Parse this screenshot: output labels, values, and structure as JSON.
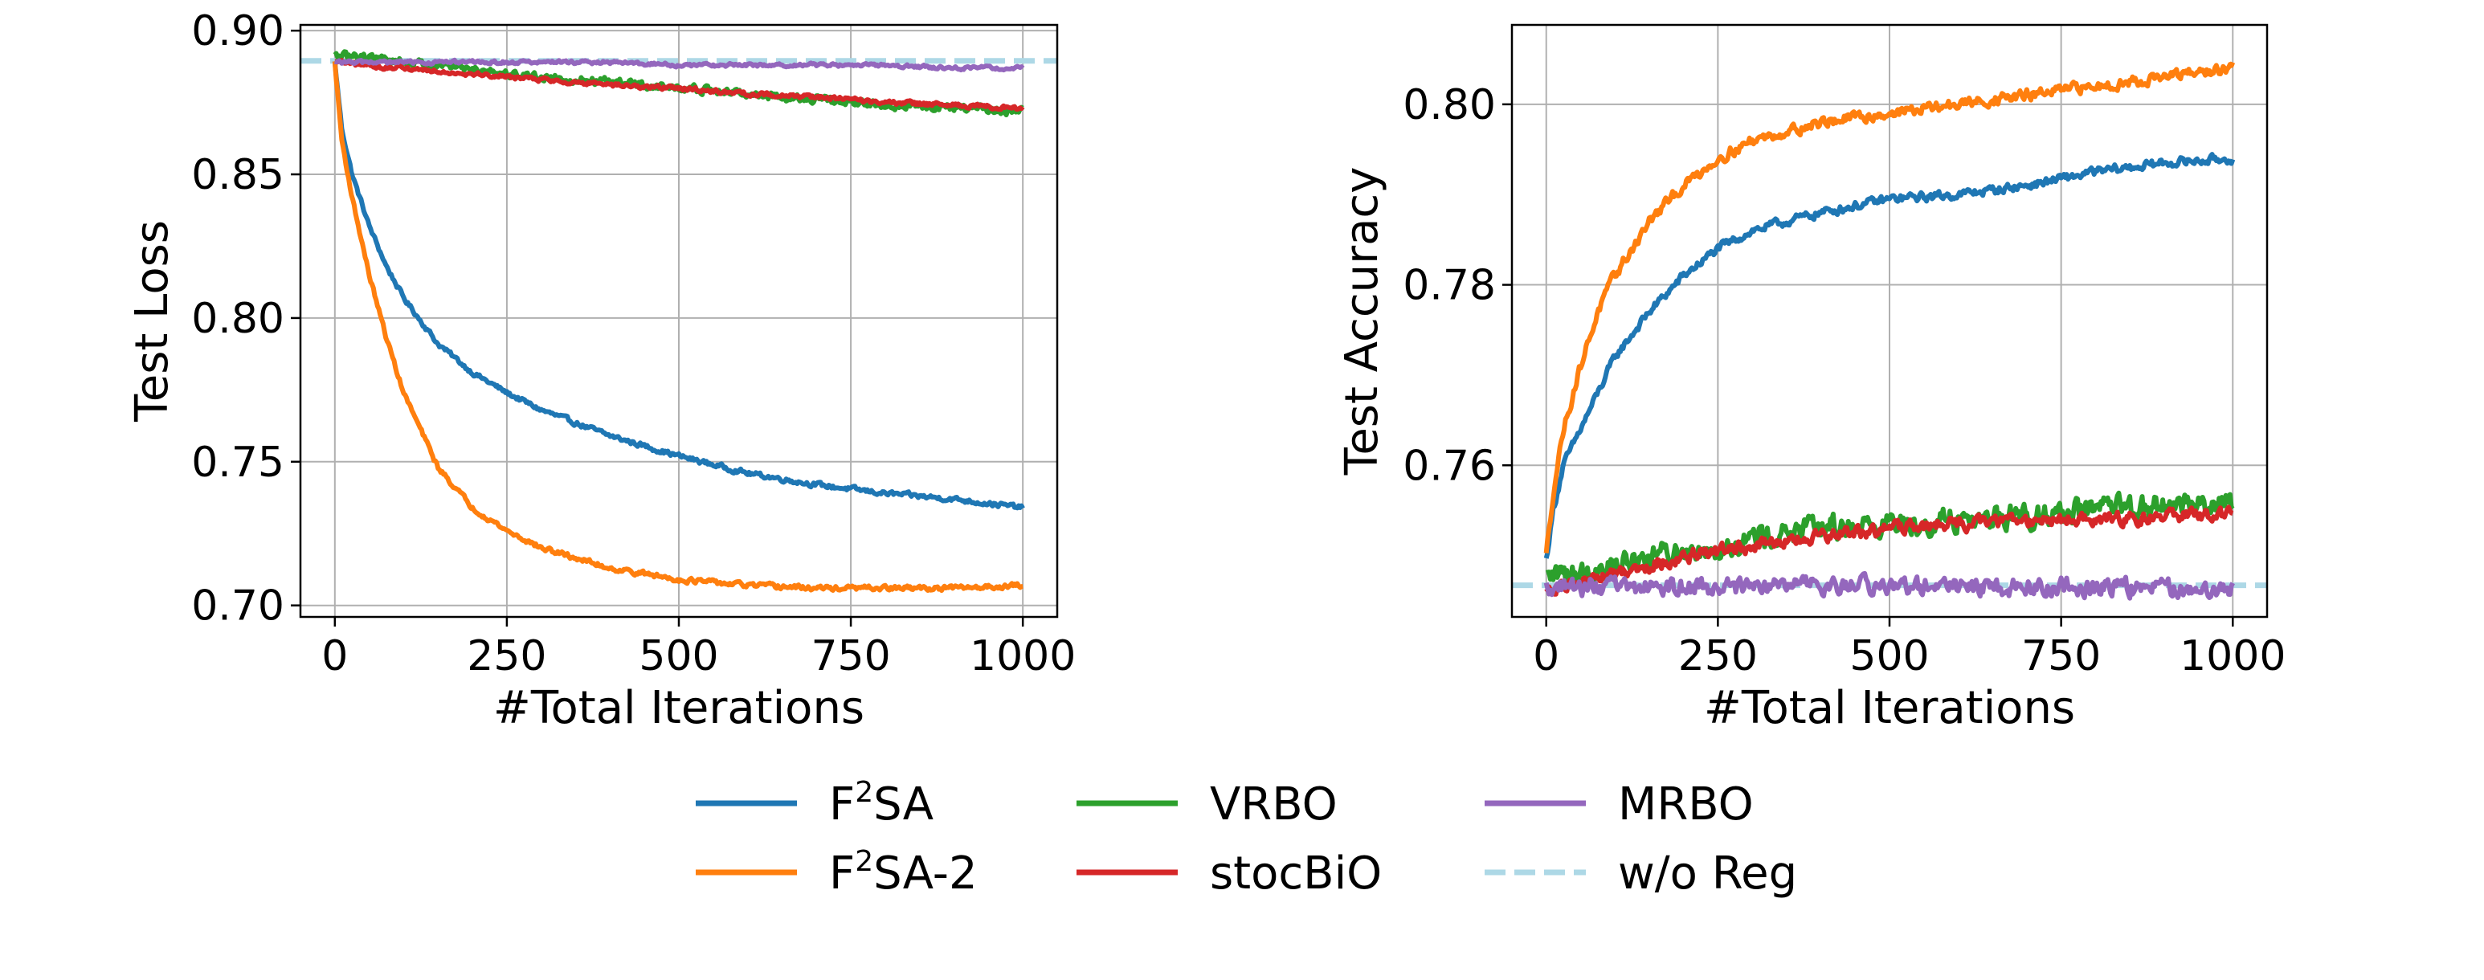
{
  "chart_data": [
    {
      "type": "line",
      "title": "",
      "xlabel": "#Total Iterations",
      "ylabel": "Test Loss",
      "xlim": [
        -50,
        1050
      ],
      "ylim": [
        0.696,
        0.902
      ],
      "xticks": [
        0,
        250,
        500,
        750,
        1000
      ],
      "xtick_labels": [
        "0",
        "250",
        "500",
        "750",
        "1000"
      ],
      "yticks": [
        0.7,
        0.75,
        0.8,
        0.85,
        0.9
      ],
      "ytick_labels": [
        "0.70",
        "0.75",
        "0.80",
        "0.85",
        "0.90"
      ],
      "grid": true,
      "x": [
        0,
        10,
        25,
        50,
        75,
        100,
        150,
        200,
        250,
        300,
        400,
        500,
        600,
        700,
        800,
        900,
        1000
      ],
      "series": [
        {
          "name": "F2SA",
          "color": "#1f77b4",
          "noise": 0.0007,
          "values": [
            0.889,
            0.866,
            0.85,
            0.832,
            0.818,
            0.807,
            0.791,
            0.781,
            0.774,
            0.768,
            0.759,
            0.752,
            0.746,
            0.742,
            0.739,
            0.737,
            0.734
          ]
        },
        {
          "name": "F2SA-2",
          "color": "#ff7f0e",
          "noise": 0.0007,
          "values": [
            0.889,
            0.862,
            0.842,
            0.815,
            0.793,
            0.774,
            0.748,
            0.734,
            0.726,
            0.72,
            0.713,
            0.709,
            0.707,
            0.706,
            0.706,
            0.706,
            0.707
          ]
        },
        {
          "name": "VRBO",
          "color": "#2ca02c",
          "noise": 0.0012,
          "values": [
            0.891,
            0.891,
            0.891,
            0.891,
            0.89,
            0.889,
            0.888,
            0.887,
            0.885,
            0.884,
            0.882,
            0.88,
            0.878,
            0.876,
            0.874,
            0.873,
            0.872
          ]
        },
        {
          "name": "stocBiO",
          "color": "#d62728",
          "noise": 0.0006,
          "values": [
            0.889,
            0.889,
            0.888,
            0.888,
            0.887,
            0.887,
            0.886,
            0.885,
            0.884,
            0.883,
            0.881,
            0.88,
            0.878,
            0.877,
            0.875,
            0.874,
            0.873
          ]
        },
        {
          "name": "MRBO",
          "color": "#9467bd",
          "noise": 0.0005,
          "values": [
            0.889,
            0.889,
            0.889,
            0.889,
            0.889,
            0.889,
            0.889,
            0.889,
            0.889,
            0.889,
            0.889,
            0.888,
            0.888,
            0.888,
            0.888,
            0.887,
            0.887
          ]
        }
      ],
      "reference": {
        "name": "w/o Reg",
        "color": "#add8e6",
        "value": 0.8895
      }
    },
    {
      "type": "line",
      "title": "",
      "xlabel": "#Total Iterations",
      "ylabel": "Test Accuracy",
      "xlim": [
        -50,
        1050
      ],
      "ylim": [
        0.7432,
        0.8088
      ],
      "xticks": [
        0,
        250,
        500,
        750,
        1000
      ],
      "xtick_labels": [
        "0",
        "250",
        "500",
        "750",
        "1000"
      ],
      "yticks": [
        0.76,
        0.78,
        0.8
      ],
      "ytick_labels": [
        "0.76",
        "0.78",
        "0.80"
      ],
      "grid": true,
      "x": [
        0,
        10,
        25,
        50,
        75,
        100,
        150,
        200,
        250,
        300,
        400,
        500,
        600,
        700,
        800,
        900,
        1000
      ],
      "series": [
        {
          "name": "F2SA",
          "color": "#1f77b4",
          "noise": 0.0004,
          "values": [
            0.7495,
            0.755,
            0.76,
            0.764,
            0.768,
            0.772,
            0.777,
            0.781,
            0.784,
            0.786,
            0.788,
            0.7895,
            0.79,
            0.791,
            0.7925,
            0.7935,
            0.794
          ]
        },
        {
          "name": "F2SA-2",
          "color": "#ff7f0e",
          "noise": 0.0005,
          "values": [
            0.75,
            0.757,
            0.764,
            0.771,
            0.777,
            0.781,
            0.787,
            0.791,
            0.794,
            0.796,
            0.798,
            0.799,
            0.8,
            0.801,
            0.802,
            0.803,
            0.804
          ]
        },
        {
          "name": "VRBO",
          "color": "#2ca02c",
          "noise": 0.0011,
          "values": [
            0.7475,
            0.7478,
            0.748,
            0.7482,
            0.7485,
            0.749,
            0.75,
            0.7505,
            0.751,
            0.752,
            0.753,
            0.7535,
            0.754,
            0.7545,
            0.755,
            0.7555,
            0.756
          ]
        },
        {
          "name": "stocBiO",
          "color": "#d62728",
          "noise": 0.0006,
          "values": [
            0.746,
            0.7462,
            0.7465,
            0.747,
            0.7475,
            0.748,
            0.749,
            0.7498,
            0.7505,
            0.751,
            0.752,
            0.753,
            0.7535,
            0.754,
            0.754,
            0.7543,
            0.7545
          ]
        },
        {
          "name": "MRBO",
          "color": "#9467bd",
          "noise": 0.0008,
          "values": [
            0.7465,
            0.7465,
            0.7465,
            0.7465,
            0.7465,
            0.7465,
            0.7465,
            0.7465,
            0.7465,
            0.7465,
            0.7467,
            0.7465,
            0.7465,
            0.7465,
            0.7465,
            0.7463,
            0.7462
          ]
        }
      ],
      "reference": {
        "name": "w/o Reg",
        "color": "#add8e6",
        "value": 0.7467
      }
    }
  ],
  "legend": {
    "placement": "bottom-center",
    "entries": [
      {
        "key": "f2sa",
        "base": "F",
        "sup": "2",
        "rest": "SA",
        "color": "#1f77b4",
        "dash": false
      },
      {
        "key": "vrbo",
        "base": "VRBO",
        "sup": "",
        "rest": "",
        "color": "#2ca02c",
        "dash": false
      },
      {
        "key": "mrbo",
        "base": "MRBO",
        "sup": "",
        "rest": "",
        "color": "#9467bd",
        "dash": false
      },
      {
        "key": "f2sa-2",
        "base": "F",
        "sup": "2",
        "rest": "SA-2",
        "color": "#ff7f0e",
        "dash": false
      },
      {
        "key": "stocbio",
        "base": "stocBiO",
        "sup": "",
        "rest": "",
        "color": "#d62728",
        "dash": false
      },
      {
        "key": "wo-reg",
        "base": "w/o Reg",
        "sup": "",
        "rest": "",
        "color": "#add8e6",
        "dash": true
      }
    ]
  }
}
